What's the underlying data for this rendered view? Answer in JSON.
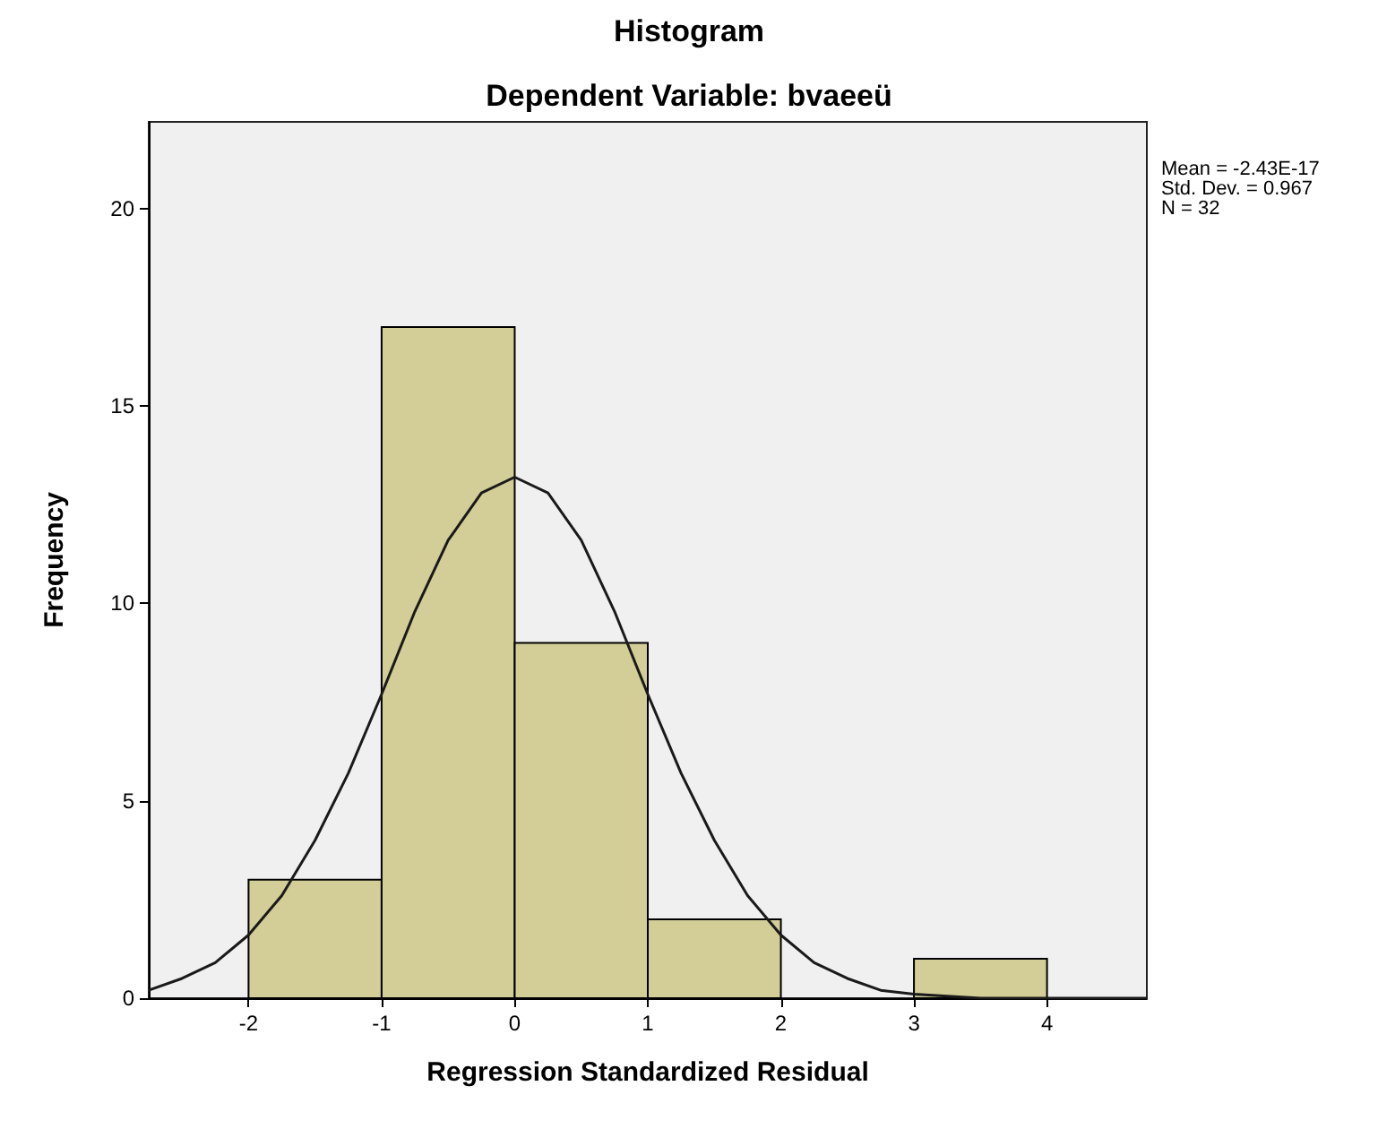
{
  "chart_data": {
    "type": "histogram",
    "title": "Histogram",
    "subtitle": "Dependent Variable: bvaeeü",
    "xlabel": "Regression Standardized Residual",
    "ylabel": "Frequency",
    "bins": [
      -2,
      -1,
      0,
      1,
      2,
      3,
      4
    ],
    "values": [
      3,
      17,
      9,
      2,
      0,
      1
    ],
    "color": "#d3cd98",
    "series": [
      {
        "type": "line",
        "color": "#1a1a1a",
        "x": [
          -2.75,
          -2.5,
          -2.25,
          -2,
          -1.75,
          -1.5,
          -1.25,
          -1,
          -0.75,
          -0.5,
          -0.25,
          0,
          0.25,
          0.5,
          0.75,
          1,
          1.25,
          1.5,
          1.75,
          2,
          2.25,
          2.5,
          2.75,
          3,
          3.5,
          4,
          4.75
        ],
        "values": [
          0.2,
          0.5,
          0.9,
          1.6,
          2.6,
          4,
          5.7,
          7.7,
          9.8,
          11.6,
          12.8,
          13.2,
          12.8,
          11.6,
          9.8,
          7.7,
          5.7,
          4,
          2.6,
          1.6,
          0.9,
          0.5,
          0.2,
          0.1,
          0,
          0,
          0
        ]
      }
    ],
    "xlim": [
      -2.75,
      4.75
    ],
    "xticks": [
      -2,
      -1,
      0,
      1,
      2,
      3,
      4
    ],
    "ylim": [
      0,
      22.2
    ],
    "yticks": [
      0,
      5,
      10,
      15,
      20
    ],
    "grid": false,
    "legend": false,
    "annotations": [
      "Mean = -2.43E-17",
      "Std. Dev. = 0.967",
      "N = 32"
    ]
  }
}
